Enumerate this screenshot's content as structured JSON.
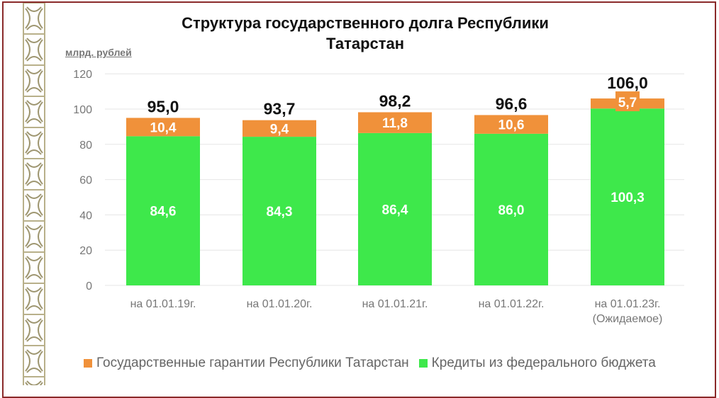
{
  "chart_data": {
    "type": "bar",
    "stacked": true,
    "title": "Структура государственного долга Республики Татарстан",
    "ylabel": "млрд. рублей",
    "ylim": [
      0,
      120
    ],
    "yticks": [
      0,
      20,
      40,
      60,
      80,
      100,
      120
    ],
    "grid": true,
    "legend_position": "bottom",
    "categories": [
      "на 01.01.19г.",
      "на 01.01.20г.",
      "на 01.01.21г.",
      "на 01.01.22г.",
      "на 01.01.23г.\n(Ожидаемое)"
    ],
    "series": [
      {
        "name": "Кредиты из федерального бюджета",
        "color": "#3ee84b",
        "values": [
          84.6,
          84.3,
          86.4,
          86.0,
          100.3
        ],
        "labels": [
          "84,6",
          "84,3",
          "86,4",
          "86,0",
          "100,3"
        ]
      },
      {
        "name": "Государственные гарантии Республики Татарстан",
        "color": "#f0913a",
        "values": [
          10.4,
          9.4,
          11.8,
          10.6,
          5.7
        ],
        "labels": [
          "10,4",
          "9,4",
          "11,8",
          "10,6",
          "5,7"
        ]
      }
    ],
    "totals": [
      95.0,
      93.7,
      98.2,
      96.6,
      106.0
    ],
    "total_labels": [
      "95,0",
      "93,7",
      "98,2",
      "96,6",
      "106,0"
    ]
  },
  "title_line1": "Структура государственного долга Республики",
  "title_line2": "Татарстан",
  "legend": [
    {
      "label": "Государственные гарантии Республики Татарстан",
      "color": "#f0913a"
    },
    {
      "label": "Кредиты из федерального бюджета",
      "color": "#3ee84b"
    }
  ]
}
